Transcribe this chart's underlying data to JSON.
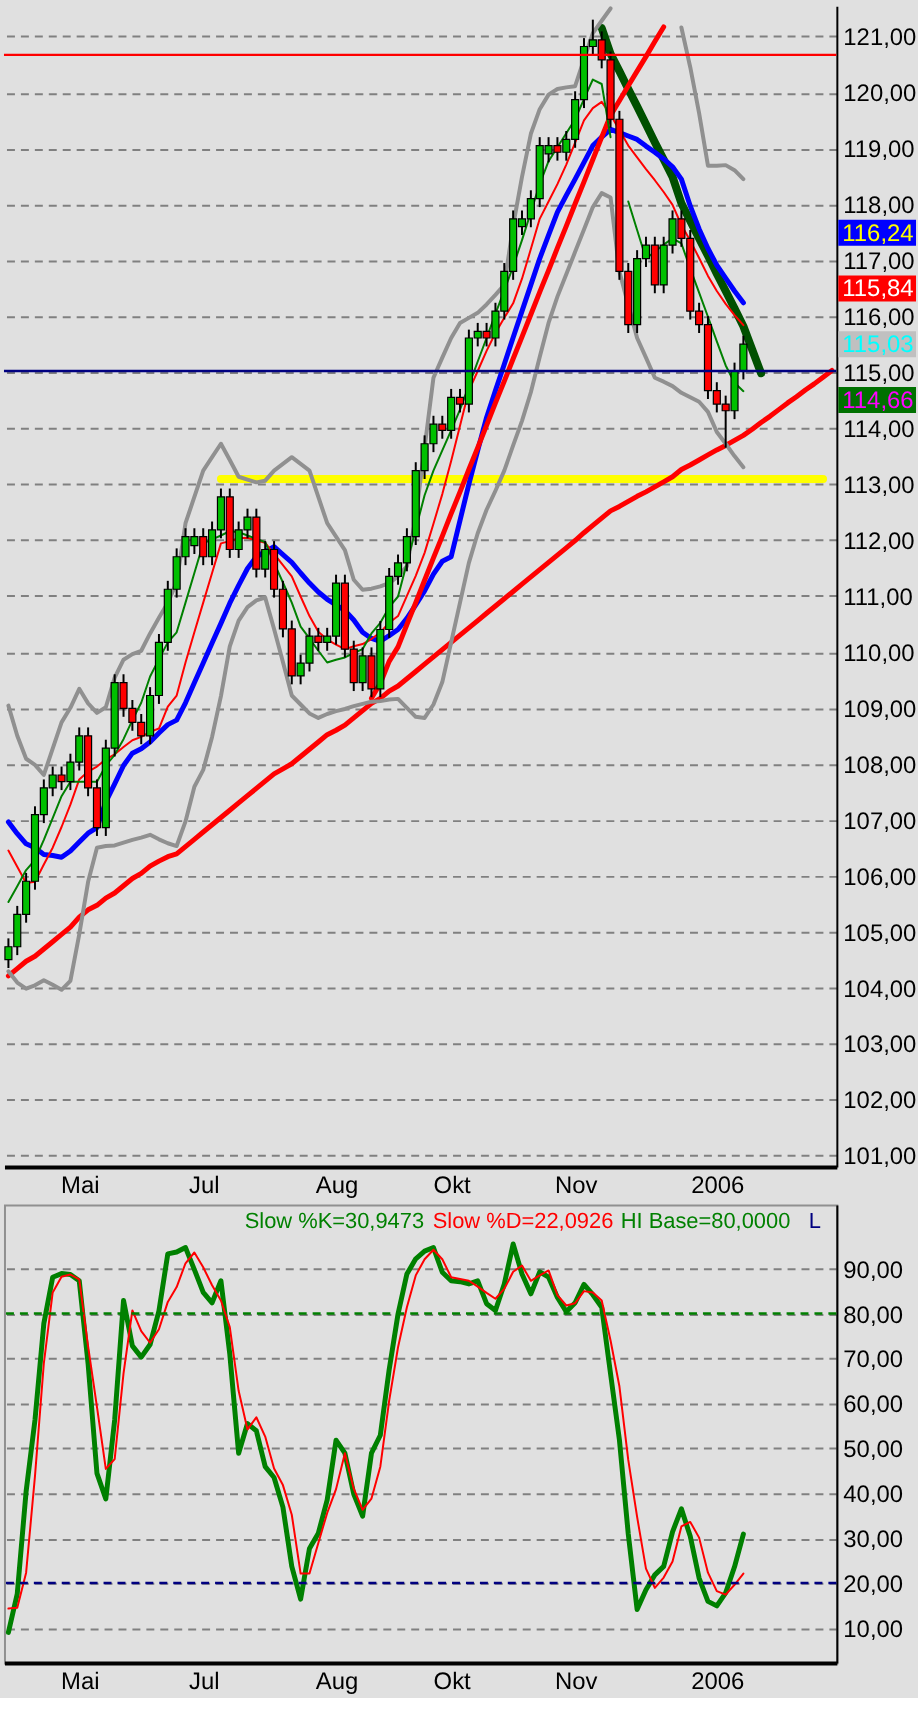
{
  "chart_data": [
    {
      "type": "candlestick",
      "categories": [
        null,
        null,
        null,
        null,
        null,
        null,
        null,
        null,
        "Mai",
        null,
        null,
        null,
        null,
        null,
        null,
        null,
        null,
        null,
        null,
        null,
        null,
        null,
        "Jul",
        null,
        null,
        null,
        null,
        null,
        null,
        null,
        null,
        null,
        null,
        null,
        null,
        null,
        null,
        "Aug",
        null,
        null,
        null,
        null,
        null,
        null,
        null,
        null,
        null,
        null,
        null,
        null,
        "Okt",
        null,
        null,
        null,
        null,
        null,
        null,
        null,
        null,
        null,
        null,
        null,
        null,
        null,
        "Nov",
        null,
        null,
        null,
        null,
        null,
        null,
        null,
        null,
        null,
        null,
        null,
        null,
        null,
        null,
        null,
        "2006",
        null,
        null,
        null,
        null,
        null,
        null,
        null,
        null,
        null,
        null,
        null,
        null,
        null
      ],
      "ohlc": [
        [
          104.5,
          104.88,
          104.35,
          104.73
        ],
        [
          104.73,
          105.46,
          104.58,
          105.31
        ],
        [
          105.31,
          106.05,
          105.16,
          105.9
        ],
        [
          105.9,
          107.24,
          105.75,
          107.09
        ],
        [
          107.09,
          107.72,
          106.94,
          107.57
        ],
        [
          107.57,
          107.95,
          107.42,
          107.8
        ],
        [
          107.8,
          107.95,
          107.53,
          107.68
        ],
        [
          107.68,
          108.18,
          107.53,
          108.03
        ],
        [
          108.03,
          108.65,
          107.88,
          108.5
        ],
        [
          108.5,
          108.65,
          107.42,
          107.57
        ],
        [
          107.57,
          107.72,
          106.71,
          106.86
        ],
        [
          106.86,
          108.43,
          106.71,
          108.28
        ],
        [
          108.28,
          109.6,
          108.13,
          109.45
        ],
        [
          109.45,
          109.6,
          108.84,
          108.99
        ],
        [
          108.99,
          109.14,
          108.59,
          108.74
        ],
        [
          108.74,
          108.89,
          108.35,
          108.5
        ],
        [
          108.5,
          109.37,
          108.35,
          109.22
        ],
        [
          109.22,
          110.32,
          109.07,
          110.17
        ],
        [
          110.17,
          111.27,
          110.02,
          111.12
        ],
        [
          111.12,
          111.85,
          110.97,
          111.7
        ],
        [
          111.7,
          112.21,
          111.55,
          112.06
        ],
        [
          111.9,
          112.21,
          111.75,
          112.06
        ],
        [
          112.06,
          112.21,
          111.55,
          111.7
        ],
        [
          111.7,
          112.33,
          111.55,
          112.18
        ],
        [
          112.18,
          112.92,
          112.03,
          112.77
        ],
        [
          112.77,
          112.92,
          111.68,
          111.83
        ],
        [
          111.83,
          112.33,
          111.68,
          112.18
        ],
        [
          112.18,
          112.56,
          112.03,
          112.41
        ],
        [
          112.41,
          112.56,
          111.33,
          111.48
        ],
        [
          111.48,
          111.98,
          111.33,
          111.83
        ],
        [
          111.83,
          111.98,
          110.97,
          111.12
        ],
        [
          111.12,
          111.27,
          110.26,
          110.41
        ],
        [
          110.41,
          110.56,
          109.42,
          109.57
        ],
        [
          109.57,
          109.95,
          109.42,
          109.8
        ],
        [
          109.8,
          110.43,
          109.65,
          110.28
        ],
        [
          110.28,
          110.43,
          110.02,
          110.17
        ],
        [
          110.17,
          110.43,
          110.02,
          110.28
        ],
        [
          110.28,
          111.38,
          110.13,
          111.23
        ],
        [
          111.23,
          111.38,
          109.9,
          110.05
        ],
        [
          110.05,
          110.2,
          109.3,
          109.45
        ],
        [
          109.45,
          110.08,
          109.3,
          109.93
        ],
        [
          109.93,
          110.08,
          109.19,
          109.34
        ],
        [
          109.34,
          110.55,
          109.19,
          110.4
        ],
        [
          110.4,
          111.5,
          110.25,
          111.35
        ],
        [
          111.35,
          111.74,
          111.2,
          111.59
        ],
        [
          111.59,
          112.21,
          111.44,
          112.06
        ],
        [
          112.06,
          113.39,
          111.91,
          113.24
        ],
        [
          113.24,
          113.87,
          113.09,
          113.72
        ],
        [
          113.72,
          114.22,
          113.57,
          114.07
        ],
        [
          114.07,
          114.22,
          113.81,
          113.96
        ],
        [
          113.96,
          114.7,
          113.81,
          114.55
        ],
        [
          114.55,
          114.7,
          114.28,
          114.43
        ],
        [
          114.43,
          115.76,
          114.28,
          115.61
        ],
        [
          115.61,
          115.88,
          115.46,
          115.73
        ],
        [
          115.73,
          115.88,
          115.46,
          115.61
        ],
        [
          115.61,
          116.24,
          115.46,
          116.09
        ],
        [
          116.09,
          116.95,
          115.94,
          116.8
        ],
        [
          116.8,
          117.89,
          116.65,
          117.74
        ],
        [
          117.6,
          117.89,
          117.45,
          117.74
        ],
        [
          117.74,
          118.25,
          117.59,
          118.1
        ],
        [
          118.1,
          119.2,
          117.95,
          119.05
        ],
        [
          118.9,
          119.2,
          118.75,
          119.05
        ],
        [
          119.05,
          119.2,
          118.78,
          118.93
        ],
        [
          118.93,
          119.31,
          118.78,
          119.16
        ],
        [
          119.16,
          120.02,
          119.01,
          119.87
        ],
        [
          119.87,
          120.97,
          119.72,
          120.82
        ],
        [
          120.82,
          121.3,
          120.67,
          120.94
        ],
        [
          120.94,
          121.09,
          120.43,
          120.58
        ],
        [
          120.58,
          120.73,
          119.37,
          119.52
        ],
        [
          119.52,
          119.67,
          116.65,
          116.8
        ],
        [
          116.8,
          116.95,
          115.7,
          115.85
        ],
        [
          115.85,
          117.18,
          115.7,
          117.03
        ],
        [
          117.03,
          117.42,
          116.88,
          117.27
        ],
        [
          117.27,
          117.42,
          116.41,
          116.56
        ],
        [
          116.56,
          117.42,
          116.41,
          117.27
        ],
        [
          117.27,
          117.89,
          117.12,
          117.74
        ],
        [
          117.74,
          117.89,
          117.24,
          117.39
        ],
        [
          117.39,
          117.54,
          115.94,
          116.09
        ],
        [
          116.09,
          116.24,
          115.7,
          115.85
        ],
        [
          115.85,
          116.0,
          114.52,
          114.67
        ],
        [
          114.67,
          114.82,
          114.28,
          114.43
        ],
        [
          114.43,
          114.58,
          113.65,
          114.31
        ],
        [
          114.31,
          115.17,
          114.16,
          115.02
        ],
        [
          115.02,
          115.65,
          114.87,
          115.5
        ],
        null,
        null,
        null,
        null,
        null,
        null,
        null,
        null,
        null,
        null
      ],
      "series": [
        {
          "type": "line",
          "color": "#0000ff",
          "values": [
            106.96,
            106.75,
            106.57,
            106.5,
            106.38,
            106.36,
            106.33,
            106.44,
            106.6,
            106.76,
            106.86,
            107.32,
            107.64,
            107.97,
            108.19,
            108.27,
            108.39,
            108.55,
            108.7,
            108.78,
            109.09,
            109.45,
            109.8,
            110.16,
            110.51,
            110.87,
            111.19,
            111.49,
            111.7,
            111.79,
            111.88,
            111.74,
            111.6,
            111.41,
            111.23,
            111.07,
            110.94,
            110.84,
            110.74,
            110.57,
            110.35,
            110.24,
            110.19,
            110.29,
            110.4,
            110.6,
            110.84,
            111.09,
            111.39,
            111.62,
            111.7,
            112.35,
            113.0,
            113.6,
            114.19,
            114.67,
            115.14,
            115.62,
            116.09,
            116.56,
            117.03,
            117.45,
            117.86,
            118.16,
            118.45,
            118.75,
            119.05,
            119.2,
            119.34,
            119.28,
            119.22,
            119.16,
            119.04,
            118.93,
            118.81,
            118.67,
            118.45,
            117.97,
            117.56,
            117.21,
            116.91,
            116.68,
            116.45,
            116.24,
            null,
            null,
            null,
            null,
            null,
            null,
            null,
            null,
            null,
            null
          ]
        },
        {
          "type": "line",
          "color": "#ff0000",
          "values": [
            106.45,
            106.16,
            105.87,
            105.89,
            106.2,
            106.5,
            106.87,
            107.27,
            107.72,
            107.86,
            107.95,
            108.08,
            108.17,
            108.3,
            108.42,
            108.48,
            108.57,
            108.63,
            109.02,
            109.22,
            109.81,
            110.35,
            110.88,
            111.41,
            111.94,
            111.98,
            112.03,
            112.04,
            111.99,
            111.95,
            111.75,
            111.55,
            111.35,
            110.99,
            110.64,
            110.36,
            110.22,
            110.13,
            110.05,
            110.1,
            110.14,
            110.23,
            110.35,
            110.52,
            110.64,
            111.0,
            111.36,
            111.77,
            112.29,
            112.82,
            113.41,
            114.04,
            114.67,
            115.02,
            115.38,
            115.7,
            115.97,
            116.23,
            116.67,
            117.2,
            117.74,
            118.05,
            118.36,
            118.71,
            119.1,
            119.5,
            119.72,
            119.83,
            119.6,
            119.33,
            119.05,
            118.84,
            118.63,
            118.43,
            118.22,
            117.99,
            117.63,
            117.35,
            117.04,
            116.72,
            116.45,
            116.22,
            116.02,
            115.84,
            null,
            null,
            null,
            null,
            null,
            null,
            null,
            null,
            null,
            null
          ]
        },
        {
          "type": "line",
          "color": "#008000",
          "values": [
            105.53,
            105.81,
            106.1,
            106.28,
            106.64,
            107.03,
            107.42,
            107.68,
            107.68,
            107.68,
            107.68,
            107.97,
            108.16,
            108.44,
            108.78,
            109.09,
            109.56,
            109.87,
            110.17,
            110.35,
            110.88,
            111.41,
            111.94,
            112.01,
            112.08,
            112.16,
            112.14,
            112.08,
            112.02,
            111.96,
            111.59,
            111.24,
            110.88,
            110.45,
            110.24,
            110.02,
            109.81,
            109.86,
            109.9,
            109.98,
            110.05,
            110.33,
            110.52,
            110.8,
            110.99,
            111.59,
            112.19,
            112.8,
            113.24,
            113.6,
            113.96,
            114.33,
            114.76,
            115.19,
            115.61,
            116.04,
            116.46,
            116.89,
            117.36,
            117.86,
            118.36,
            118.77,
            119.02,
            119.27,
            119.52,
            119.88,
            120.23,
            120.15,
            119.2,
            null,
            118.05,
            117.54,
            117.03,
            117.15,
            117.28,
            117.39,
            117.3,
            116.85,
            116.42,
            115.99,
            115.55,
            115.12,
            114.81,
            114.66,
            null,
            null,
            null,
            null,
            null,
            null,
            null,
            null,
            null,
            null
          ]
        },
        {
          "type": "line",
          "color": "#909090",
          "values": [
            109.04,
            108.5,
            108.09,
            107.98,
            107.8,
            108.27,
            108.74,
            109.0,
            109.34,
            109.08,
            108.91,
            109.01,
            109.54,
            109.86,
            109.96,
            110.02,
            110.33,
            110.61,
            110.88,
            111.24,
            112.3,
            112.77,
            113.24,
            113.48,
            113.72,
            113.43,
            113.13,
            113.08,
            113.03,
            113.06,
            113.24,
            113.36,
            113.48,
            113.36,
            113.24,
            112.77,
            112.3,
            112.06,
            111.82,
            111.29,
            111.11,
            111.13,
            111.17,
            111.23,
            111.35,
            111.53,
            112.41,
            113.65,
            114.9,
            115.26,
            115.61,
            115.88,
            115.97,
            116.06,
            116.21,
            116.38,
            116.56,
            117.62,
            118.49,
            119.26,
            119.7,
            119.96,
            120.06,
            120.09,
            120.11,
            120.59,
            121.06,
            121.28,
            121.5,
            null,
            null,
            null,
            null,
            null,
            null,
            null,
            121.16,
            120.45,
            119.63,
            118.69,
            118.69,
            118.7,
            118.61,
            118.45,
            null,
            null,
            null,
            null,
            null,
            null,
            null,
            null,
            null,
            null
          ]
        },
        {
          "type": "line",
          "color": "#909090",
          "values": [
            104.29,
            104.09,
            103.98,
            104.04,
            104.13,
            104.05,
            103.96,
            104.12,
            104.95,
            105.89,
            106.5,
            106.53,
            106.54,
            106.59,
            106.64,
            106.68,
            106.73,
            106.65,
            106.58,
            106.53,
            106.97,
            107.59,
            107.89,
            108.48,
            109.21,
            110.1,
            110.56,
            110.8,
            110.92,
            110.97,
            110.41,
            109.82,
            109.22,
            109.06,
            108.9,
            108.82,
            108.89,
            108.94,
            108.98,
            109.03,
            109.07,
            109.11,
            109.12,
            109.15,
            109.16,
            109.0,
            108.84,
            108.82,
            109.06,
            109.46,
            110.17,
            110.88,
            111.59,
            112.12,
            112.54,
            112.88,
            113.24,
            113.69,
            114.13,
            114.64,
            115.27,
            115.88,
            116.35,
            116.75,
            117.15,
            117.55,
            117.95,
            118.2,
            118.12,
            116.8,
            116.2,
            115.61,
            115.26,
            114.9,
            114.83,
            114.75,
            114.63,
            114.55,
            114.47,
            114.29,
            113.93,
            113.72,
            113.5,
            113.3,
            null,
            null,
            null,
            null,
            null,
            null,
            null,
            null,
            null,
            null
          ]
        },
        {
          "type": "line",
          "color": "#ff0000",
          "values": [
            104.21,
            104.34,
            104.47,
            104.56,
            104.69,
            104.82,
            104.95,
            105.08,
            105.26,
            105.39,
            105.47,
            105.6,
            105.69,
            105.82,
            105.95,
            106.04,
            106.17,
            106.26,
            106.34,
            106.39,
            106.52,
            106.65,
            106.78,
            106.91,
            107.04,
            107.17,
            107.3,
            107.43,
            107.56,
            107.69,
            107.82,
            107.91,
            108.0,
            108.13,
            108.26,
            108.39,
            108.52,
            108.6,
            108.69,
            108.82,
            108.95,
            109.08,
            109.17,
            109.3,
            109.39,
            109.52,
            109.65,
            109.78,
            109.91,
            110.04,
            110.17,
            110.3,
            110.43,
            110.56,
            110.69,
            110.82,
            110.95,
            111.08,
            111.21,
            111.34,
            111.47,
            111.6,
            111.73,
            111.86,
            111.99,
            112.13,
            112.26,
            112.39,
            112.52,
            112.6,
            112.69,
            112.78,
            112.86,
            112.95,
            113.04,
            113.13,
            113.26,
            113.34,
            113.43,
            113.52,
            113.61,
            113.69,
            113.78,
            113.87,
            113.98,
            114.1,
            114.21,
            114.33,
            114.45,
            114.56,
            114.68,
            114.79,
            114.91,
            115.03
          ]
        },
        {
          "type": "line",
          "color": "#ff0000",
          "values": [
            null,
            null,
            null,
            null,
            null,
            null,
            null,
            null,
            null,
            null,
            null,
            null,
            null,
            null,
            null,
            null,
            null,
            null,
            null,
            null,
            null,
            null,
            null,
            null,
            null,
            null,
            null,
            null,
            null,
            null,
            null,
            null,
            null,
            null,
            null,
            null,
            null,
            null,
            null,
            null,
            null,
            109.17,
            109.44,
            109.83,
            110.09,
            110.49,
            110.88,
            111.28,
            111.68,
            112.07,
            112.47,
            112.86,
            113.26,
            113.65,
            114.05,
            114.45,
            114.84,
            115.24,
            115.63,
            116.03,
            116.43,
            116.82,
            117.22,
            117.61,
            118.01,
            118.4,
            118.8,
            119.2,
            119.59,
            119.85,
            120.12,
            120.38,
            120.64,
            120.91,
            121.17,
            null,
            null,
            null,
            null,
            null,
            null,
            null,
            null,
            null,
            null,
            null,
            null,
            null,
            null,
            null,
            null,
            null,
            null,
            null
          ]
        },
        {
          "type": "line",
          "color": "#005000",
          "values": [
            null,
            null,
            null,
            null,
            null,
            null,
            null,
            null,
            null,
            null,
            null,
            null,
            null,
            null,
            null,
            null,
            null,
            null,
            null,
            null,
            null,
            null,
            null,
            null,
            null,
            null,
            null,
            null,
            null,
            null,
            null,
            null,
            null,
            null,
            null,
            null,
            null,
            null,
            null,
            null,
            null,
            null,
            null,
            null,
            null,
            null,
            null,
            null,
            null,
            null,
            null,
            null,
            null,
            null,
            null,
            null,
            null,
            null,
            null,
            null,
            null,
            null,
            null,
            null,
            null,
            null,
            null,
            121.15,
            120.69,
            120.38,
            120.06,
            119.75,
            119.43,
            119.11,
            118.8,
            118.49,
            118.02,
            117.7,
            117.39,
            117.08,
            116.76,
            116.45,
            116.14,
            115.82,
            115.4,
            114.98,
            null,
            null,
            null,
            null,
            null,
            null,
            null,
            null
          ]
        },
        {
          "type": "line",
          "color": "#ffff00",
          "values": [
            null,
            null,
            null,
            null,
            null,
            null,
            null,
            null,
            null,
            null,
            null,
            null,
            null,
            null,
            null,
            null,
            null,
            null,
            null,
            null,
            null,
            null,
            null,
            null,
            113.09,
            113.09,
            113.09,
            113.09,
            113.09,
            113.09,
            113.09,
            113.09,
            113.09,
            113.09,
            113.09,
            113.09,
            113.09,
            113.09,
            113.09,
            113.09,
            113.09,
            113.09,
            113.09,
            113.09,
            113.09,
            113.09,
            113.09,
            113.09,
            113.09,
            113.09,
            113.09,
            113.09,
            113.09,
            113.09,
            113.09,
            113.09,
            113.09,
            113.09,
            113.09,
            113.09,
            113.09,
            113.09,
            113.09,
            113.09,
            113.09,
            113.09,
            113.09,
            113.09,
            113.09,
            113.09,
            113.09,
            113.09,
            113.09,
            113.09,
            113.09,
            113.09,
            113.09,
            113.09,
            113.09,
            113.09,
            113.09,
            113.09,
            113.09,
            113.09,
            113.09,
            113.09,
            113.09,
            113.09,
            113.09,
            113.09,
            113.09,
            113.09,
            113.09,
            null
          ]
        }
      ],
      "ref_lines": [
        {
          "axis": "y",
          "value": 120.67,
          "color": "#ff0000"
        },
        {
          "axis": "y",
          "value": 115.02,
          "color": "#000080"
        }
      ],
      "annotations": [
        "116,24",
        "115,84",
        "115,03",
        "114,66"
      ],
      "ylim": [
        100.8,
        121.55
      ],
      "yticks": [
        {
          "value": 101,
          "label": "101,00"
        },
        {
          "value": 102,
          "label": "102,00"
        },
        {
          "value": 103,
          "label": "103,00"
        },
        {
          "value": 104,
          "label": "104,00"
        },
        {
          "value": 105,
          "label": "105,00"
        },
        {
          "value": 106,
          "label": "106,00"
        },
        {
          "value": 107,
          "label": "107,00"
        },
        {
          "value": 108,
          "label": "108,00"
        },
        {
          "value": 109,
          "label": "109,00"
        },
        {
          "value": 110,
          "label": "110,00"
        },
        {
          "value": 111,
          "label": "111,00"
        },
        {
          "value": 112,
          "label": "112,00"
        },
        {
          "value": 113,
          "label": "113,00"
        },
        {
          "value": 114,
          "label": "114,00"
        },
        {
          "value": 115,
          "label": "115,00"
        },
        {
          "value": 116,
          "label": "116,00"
        },
        {
          "value": 117,
          "label": "117,00"
        },
        {
          "value": 118,
          "label": "118,00"
        },
        {
          "value": 119,
          "label": "119,00"
        },
        {
          "value": 120,
          "label": "120,00"
        },
        {
          "value": 121,
          "label": "121,00"
        }
      ],
      "grid": "y"
    },
    {
      "type": "line",
      "categories": [
        null,
        null,
        null,
        null,
        null,
        null,
        null,
        null,
        "Mai",
        null,
        null,
        null,
        null,
        null,
        null,
        null,
        null,
        null,
        null,
        null,
        null,
        null,
        "Jul",
        null,
        null,
        null,
        null,
        null,
        null,
        null,
        null,
        null,
        null,
        null,
        null,
        null,
        null,
        "Aug",
        null,
        null,
        null,
        null,
        null,
        null,
        null,
        null,
        null,
        null,
        null,
        null,
        "Okt",
        null,
        null,
        null,
        null,
        null,
        null,
        null,
        null,
        null,
        null,
        null,
        null,
        null,
        "Nov",
        null,
        null,
        null,
        null,
        null,
        null,
        null,
        null,
        null,
        null,
        null,
        null,
        null,
        null,
        null,
        "2006",
        null,
        null,
        null,
        null,
        null,
        null,
        null,
        null,
        null,
        null,
        null,
        null,
        null
      ],
      "series": [
        {
          "name": "Slow %K=30,9473",
          "color": "#008000",
          "values": [
            9.0,
            17.6,
            40.4,
            56.3,
            77.8,
            88.1,
            88.9,
            88.7,
            87.3,
            68.8,
            44.4,
            38.7,
            56.3,
            82.9,
            72.8,
            70.3,
            73.1,
            80.6,
            93.3,
            93.7,
            94.7,
            89.8,
            84.7,
            82.4,
            87.3,
            71.0,
            48.9,
            55.5,
            53.9,
            45.9,
            43.5,
            36.9,
            23.7,
            16.4,
            27.7,
            31.1,
            38.5,
            51.8,
            48.9,
            39.8,
            34.9,
            48.9,
            52.9,
            67.5,
            79.9,
            88.8,
            92.2,
            93.9,
            94.7,
            89.2,
            87.3,
            87.1,
            86.6,
            87.3,
            82.2,
            80.7,
            86.6,
            95.5,
            88.8,
            84.4,
            89.3,
            88.1,
            83.6,
            80.4,
            82.4,
            86.5,
            84.2,
            81.4,
            66.6,
            51.9,
            30.9,
            14.1,
            18.5,
            21.8,
            23.7,
            31.4,
            36.5,
            30.4,
            21.1,
            15.9,
            14.9,
            17.8,
            23.6,
            30.9,
            null,
            null,
            null,
            null,
            null,
            null,
            null,
            null,
            null,
            null
          ]
        },
        {
          "name": "Slow %D=22,0926",
          "color": "#ff0000",
          "values": [
            14.3,
            14.5,
            22.3,
            43.8,
            68.9,
            84.7,
            88.2,
            88.7,
            87.6,
            72.7,
            59.2,
            45.4,
            47.6,
            66.7,
            80.7,
            76.1,
            73.5,
            76.5,
            82.6,
            85.9,
            91.2,
            93.6,
            90.3,
            86.3,
            82.9,
            77.0,
            62.8,
            54.2,
            56.9,
            52.6,
            45.5,
            41.8,
            35.2,
            22.1,
            22.1,
            28.9,
            35.6,
            40.9,
            48.9,
            41.0,
            36.3,
            38.8,
            45.9,
            60.6,
            72.5,
            81.4,
            88.5,
            92.1,
            94.2,
            92.1,
            88.1,
            87.7,
            87.3,
            86.0,
            84.6,
            83.3,
            85.5,
            89.3,
            90.7,
            87.3,
            88.5,
            89.6,
            84.1,
            81.8,
            82.3,
            85.0,
            84.7,
            82.9,
            74.0,
            63.8,
            47.4,
            34.7,
            23.2,
            18.9,
            21.2,
            24.8,
            32.6,
            33.6,
            30.1,
            22.3,
            18.2,
            17.4,
            19.6,
            22.1,
            null,
            null,
            null,
            null,
            null,
            null,
            null,
            null,
            null,
            null
          ]
        }
      ],
      "ref_lines": [
        {
          "axis": "y",
          "value": 80,
          "label": "HI Base=80,0000",
          "color": "#008000",
          "line_style": "dashed"
        },
        {
          "axis": "y",
          "value": 20,
          "label": "L",
          "color": "#000080",
          "line_style": "dashed"
        }
      ],
      "ylim": [
        2.3,
        104.3
      ],
      "yticks": [
        {
          "value": 10,
          "label": "10,00"
        },
        {
          "value": 20,
          "label": "20,00"
        },
        {
          "value": 30,
          "label": "30,00"
        },
        {
          "value": 40,
          "label": "40,00"
        },
        {
          "value": 50,
          "label": "50,00"
        },
        {
          "value": 60,
          "label": "60,00"
        },
        {
          "value": 70,
          "label": "70,00"
        },
        {
          "value": 80,
          "label": "80,00"
        },
        {
          "value": 90,
          "label": "90,00"
        }
      ],
      "grid": "y"
    }
  ]
}
